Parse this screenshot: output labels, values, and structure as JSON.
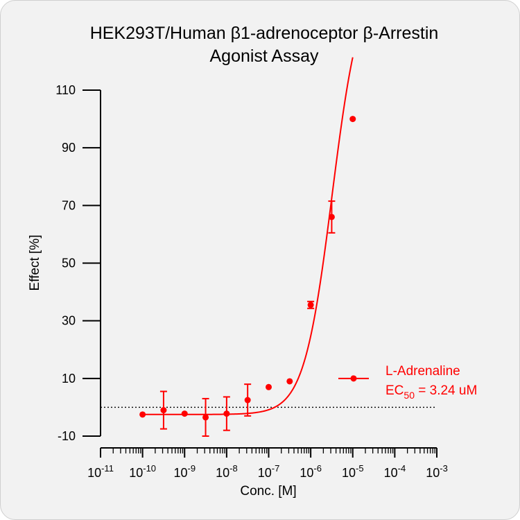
{
  "chart_data": {
    "type": "scatter",
    "title": [
      "HEK293T/Human β1-adrenoceptor β-Arrestin",
      "Agonist Assay"
    ],
    "xlabel": "Conc. [M]",
    "ylabel": "Effect  [%]",
    "x_scale": "log",
    "xlim": [
      1e-11,
      0.001
    ],
    "x_tick_labels": [
      {
        "base": "10",
        "exp": "-11"
      },
      {
        "base": "10",
        "exp": "-10"
      },
      {
        "base": "10",
        "exp": "-9"
      },
      {
        "base": "10",
        "exp": "-8"
      },
      {
        "base": "10",
        "exp": "-7"
      },
      {
        "base": "10",
        "exp": "-6"
      },
      {
        "base": "10",
        "exp": "-5"
      },
      {
        "base": "10",
        "exp": "-4"
      },
      {
        "base": "10",
        "exp": "-3"
      }
    ],
    "ylim": [
      -10,
      110
    ],
    "y_ticks": [
      "110",
      "90",
      "70",
      "50",
      "30",
      "10",
      "-10"
    ],
    "baseline_y": 0,
    "series": [
      {
        "name": "L-Adrenaline",
        "color": "#ff0000",
        "x": [
          1e-10,
          3.16e-10,
          1e-09,
          3.16e-09,
          1e-08,
          3.16e-08,
          1e-07,
          3.16e-07,
          1e-06,
          3.16e-06,
          1e-05
        ],
        "y": [
          -2.5,
          -1,
          -2.2,
          -3.5,
          -2.2,
          2.5,
          7,
          9,
          35.5,
          66,
          100
        ],
        "error": [
          0,
          6.5,
          0,
          6.5,
          5.8,
          5.5,
          0,
          0,
          1.2,
          5.5,
          0
        ],
        "fit_curve": true
      }
    ],
    "legend": {
      "label": "L-Adrenaline",
      "ec50_prefix": "EC",
      "ec50_sub": "50",
      "ec50_value": " = 3.24 uM",
      "placement": "right"
    }
  }
}
